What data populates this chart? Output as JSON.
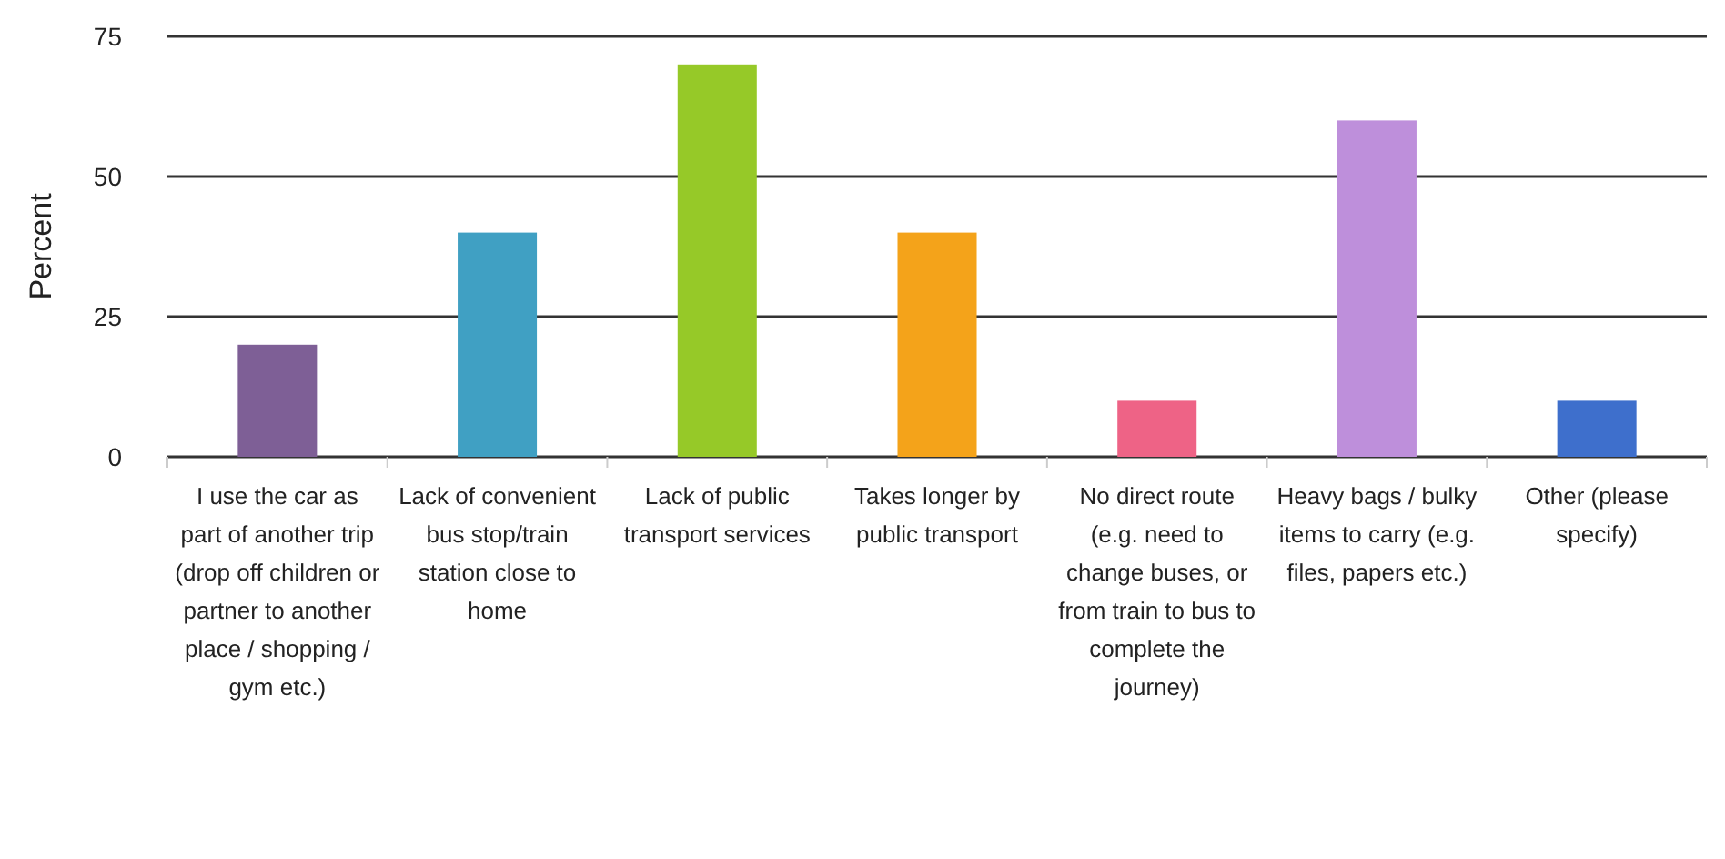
{
  "chart_data": {
    "type": "bar",
    "ylabel": "Percent",
    "categories": [
      "I use the car as part of another trip (drop off children or partner to another place / shopping / gym etc.)",
      "Lack of convenient bus stop/train station close to home",
      "Lack of public transport services",
      "Takes longer by public transport",
      "No direct route (e.g. need to change buses, or from train to bus to complete the journey)",
      "Heavy bags / bulky items to carry (e.g. files, papers etc.)",
      "Other (please specify)"
    ],
    "values": [
      20,
      40,
      70,
      40,
      10,
      60,
      10
    ],
    "colors": [
      "#7e5f96",
      "#40a0c3",
      "#96c928",
      "#f4a31a",
      "#ee6386",
      "#be8fdb",
      "#3e6fcc"
    ],
    "ylim": [
      0,
      75
    ],
    "yticks": [
      0,
      25,
      50,
      75
    ],
    "grid": "y"
  }
}
